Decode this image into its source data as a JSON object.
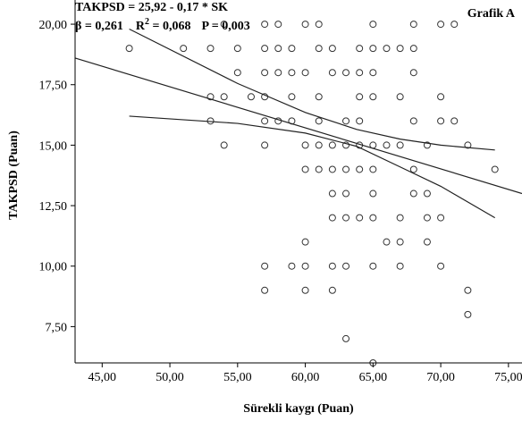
{
  "chart_data": {
    "type": "scatter",
    "title": "Grafik A",
    "equation": "TAKPSD = 25,92 - 0,17 * SK",
    "stats": {
      "beta": "β = 0,261",
      "r2_prefix": "R",
      "r2_sup": "2",
      "r2_value": " = 0,068",
      "p": "P = 0,003"
    },
    "xlabel": "Sürekli kaygı (Puan)",
    "ylabel": "TAKPSD (Puan)",
    "xlim": [
      43,
      76
    ],
    "ylim": [
      6,
      21
    ],
    "xticks": [
      45,
      50,
      55,
      60,
      65,
      70,
      75
    ],
    "xtick_labels": [
      "45,00",
      "50,00",
      "55,00",
      "60,00",
      "65,00",
      "70,00",
      "75,00"
    ],
    "yticks": [
      7.5,
      10,
      12.5,
      15,
      17.5,
      20
    ],
    "ytick_labels": [
      "7,50",
      "10,00",
      "12,50",
      "15,00",
      "17,50",
      "20,00"
    ],
    "grid": false,
    "series": [
      {
        "marker": "open-circle",
        "points": [
          [
            47,
            19
          ],
          [
            51,
            19
          ],
          [
            53,
            19
          ],
          [
            55,
            19
          ],
          [
            57,
            19
          ],
          [
            58,
            19
          ],
          [
            59,
            19
          ],
          [
            61,
            19
          ],
          [
            62,
            19
          ],
          [
            64,
            19
          ],
          [
            65,
            19
          ],
          [
            66,
            19
          ],
          [
            67,
            19
          ],
          [
            68,
            19
          ],
          [
            54,
            20
          ],
          [
            57,
            20
          ],
          [
            58,
            20
          ],
          [
            60,
            20
          ],
          [
            61,
            20
          ],
          [
            65,
            20
          ],
          [
            68,
            20
          ],
          [
            70,
            20
          ],
          [
            71,
            20
          ],
          [
            55,
            18
          ],
          [
            57,
            18
          ],
          [
            58,
            18
          ],
          [
            59,
            18
          ],
          [
            60,
            18
          ],
          [
            62,
            18
          ],
          [
            63,
            18
          ],
          [
            64,
            18
          ],
          [
            65,
            18
          ],
          [
            68,
            18
          ],
          [
            53,
            17
          ],
          [
            54,
            17
          ],
          [
            56,
            17
          ],
          [
            57,
            17
          ],
          [
            59,
            17
          ],
          [
            61,
            17
          ],
          [
            64,
            17
          ],
          [
            65,
            17
          ],
          [
            67,
            17
          ],
          [
            70,
            17
          ],
          [
            53,
            16
          ],
          [
            57,
            16
          ],
          [
            58,
            16
          ],
          [
            59,
            16
          ],
          [
            61,
            16
          ],
          [
            63,
            16
          ],
          [
            64,
            16
          ],
          [
            68,
            16
          ],
          [
            70,
            16
          ],
          [
            71,
            16
          ],
          [
            54,
            15
          ],
          [
            57,
            15
          ],
          [
            60,
            15
          ],
          [
            61,
            15
          ],
          [
            62,
            15
          ],
          [
            63,
            15
          ],
          [
            64,
            15
          ],
          [
            65,
            15
          ],
          [
            66,
            15
          ],
          [
            67,
            15
          ],
          [
            69,
            15
          ],
          [
            72,
            15
          ],
          [
            60,
            14
          ],
          [
            61,
            14
          ],
          [
            62,
            14
          ],
          [
            63,
            14
          ],
          [
            64,
            14
          ],
          [
            65,
            14
          ],
          [
            68,
            14
          ],
          [
            74,
            14
          ],
          [
            62,
            13
          ],
          [
            63,
            13
          ],
          [
            65,
            13
          ],
          [
            68,
            13
          ],
          [
            69,
            13
          ],
          [
            62,
            12
          ],
          [
            63,
            12
          ],
          [
            64,
            12
          ],
          [
            65,
            12
          ],
          [
            67,
            12
          ],
          [
            69,
            12
          ],
          [
            70,
            12
          ],
          [
            60,
            11
          ],
          [
            66,
            11
          ],
          [
            67,
            11
          ],
          [
            69,
            11
          ],
          [
            57,
            10
          ],
          [
            59,
            10
          ],
          [
            60,
            10
          ],
          [
            62,
            10
          ],
          [
            63,
            10
          ],
          [
            65,
            10
          ],
          [
            67,
            10
          ],
          [
            70,
            10
          ],
          [
            57,
            9
          ],
          [
            60,
            9
          ],
          [
            62,
            9
          ],
          [
            72,
            9
          ],
          [
            72,
            8
          ],
          [
            63,
            7
          ],
          [
            65,
            6
          ]
        ]
      }
    ],
    "fit_line": {
      "x1": 43,
      "y1": 18.6,
      "x2": 76,
      "y2": 13.0
    },
    "ci_lines": [
      {
        "x": [
          47,
          55,
          60,
          63.8,
          67,
          70,
          74
        ],
        "y": [
          19.8,
          17.55,
          16.35,
          15.65,
          15.25,
          15.0,
          14.8
        ]
      },
      {
        "x": [
          47,
          55,
          60,
          63.8,
          67,
          70,
          74
        ],
        "y": [
          16.2,
          15.9,
          15.5,
          14.95,
          14.1,
          13.3,
          12.0
        ]
      }
    ]
  }
}
